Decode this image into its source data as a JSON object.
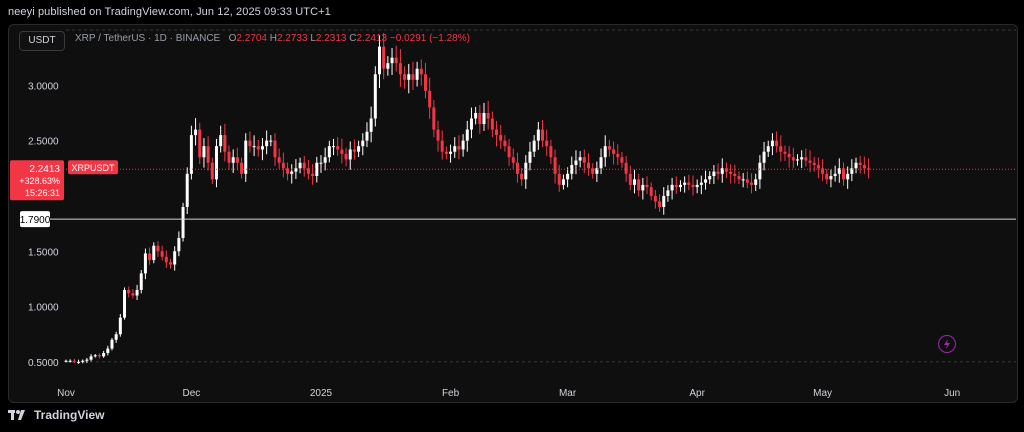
{
  "header": {
    "published": "neeyi published on TradingView.com, Jun 12, 2025 09:33 UTC+1"
  },
  "symbol_chip": "USDT",
  "legend": {
    "pair": "XRP / TetherUS · 1D · BINANCE",
    "o_label": "O",
    "o_value": "2.2704",
    "h_label": "H",
    "h_value": "2.2733",
    "l_label": "L",
    "l_value": "2.2313",
    "c_label": "C",
    "c_value": "2.2413",
    "change": "−0.0291 (−1.28%)"
  },
  "price_tag": {
    "price": "2.2413",
    "change_pct": "+328.63%",
    "countdown": "15:26:31",
    "ticker": "XRPUSDT"
  },
  "horizontal_line_label": "1.7900",
  "footer": {
    "brand": "TradingView"
  },
  "colors": {
    "up": "#ffffff",
    "down": "#f23645",
    "tag": "#f23645",
    "grid_dashed": "#3a3a3a",
    "accent": "#9c27b0"
  },
  "chart_data": {
    "type": "candlestick",
    "ylim": [
      0.3,
      3.5
    ],
    "yticks": [
      {
        "value": 0.5,
        "label": "0.5000"
      },
      {
        "value": 1.0,
        "label": "1.0000"
      },
      {
        "value": 1.5,
        "label": "1.5000"
      },
      {
        "value": 2.5,
        "label": "2.5000"
      },
      {
        "value": 3.0,
        "label": "3.0000"
      }
    ],
    "xticks": [
      {
        "label": "Nov",
        "date": "2024-11-01"
      },
      {
        "label": "Dec",
        "date": "2024-12-01"
      },
      {
        "label": "2025",
        "date": "2025-01-01"
      },
      {
        "label": "Feb",
        "date": "2025-02-01"
      },
      {
        "label": "Mar",
        "date": "2025-03-01"
      },
      {
        "label": "Apr",
        "date": "2025-04-01"
      },
      {
        "label": "May",
        "date": "2025-05-01"
      },
      {
        "label": "Jun",
        "date": "2025-06-01"
      }
    ],
    "hline": 1.79,
    "start_date": "2024-11-01",
    "closes": [
      0.51,
      0.51,
      0.5,
      0.5,
      0.51,
      0.52,
      0.55,
      0.56,
      0.55,
      0.58,
      0.62,
      0.7,
      0.75,
      0.9,
      1.15,
      1.12,
      1.1,
      1.15,
      1.3,
      1.48,
      1.42,
      1.55,
      1.5,
      1.45,
      1.4,
      1.38,
      1.5,
      1.62,
      1.9,
      2.2,
      2.55,
      2.6,
      2.35,
      2.45,
      2.3,
      2.15,
      2.45,
      2.55,
      2.4,
      2.3,
      2.35,
      2.3,
      2.2,
      2.5,
      2.45,
      2.45,
      2.42,
      2.45,
      2.5,
      2.5,
      2.35,
      2.3,
      2.25,
      2.2,
      2.22,
      2.25,
      2.3,
      2.25,
      2.2,
      2.18,
      2.3,
      2.3,
      2.35,
      2.45,
      2.45,
      2.42,
      2.38,
      2.33,
      2.42,
      2.4,
      2.45,
      2.5,
      2.58,
      2.7,
      3.1,
      3.35,
      3.15,
      3.2,
      3.25,
      3.2,
      3.1,
      3.05,
      3.1,
      3.05,
      3.15,
      3.1,
      2.95,
      2.8,
      2.6,
      2.5,
      2.4,
      2.38,
      2.4,
      2.45,
      2.42,
      2.5,
      2.6,
      2.7,
      2.75,
      2.65,
      2.75,
      2.7,
      2.6,
      2.55,
      2.5,
      2.45,
      2.35,
      2.3,
      2.2,
      2.15,
      2.3,
      2.4,
      2.5,
      2.6,
      2.5,
      2.45,
      2.35,
      2.2,
      2.1,
      2.15,
      2.2,
      2.28,
      2.32,
      2.35,
      2.3,
      2.25,
      2.2,
      2.25,
      2.35,
      2.45,
      2.42,
      2.38,
      2.35,
      2.3,
      2.2,
      2.1,
      2.15,
      2.05,
      2.1,
      2.08,
      2.0,
      1.95,
      1.9,
      2.0,
      2.05,
      2.1,
      2.08,
      2.1,
      2.12,
      2.1,
      2.08,
      2.1,
      2.12,
      2.15,
      2.18,
      2.22,
      2.2,
      2.25,
      2.22,
      2.2,
      2.18,
      2.15,
      2.15,
      2.12,
      2.1,
      2.15,
      2.3,
      2.4,
      2.45,
      2.5,
      2.45,
      2.4,
      2.38,
      2.35,
      2.32,
      2.33,
      2.35,
      2.32,
      2.3,
      2.28,
      2.25,
      2.2,
      2.15,
      2.18,
      2.2,
      2.25,
      2.15,
      2.2,
      2.25,
      2.3,
      2.28,
      2.25,
      2.24
    ],
    "last_close": 2.2413
  }
}
